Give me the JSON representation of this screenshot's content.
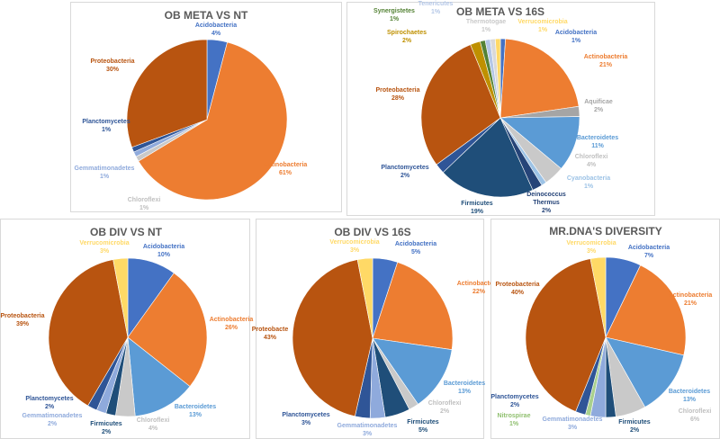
{
  "colors": {
    "Acidobacteria": "#4472C4",
    "Actinobacteria": "#ED7D31",
    "Aquificae": "#A5A5A5",
    "Bacteroidetes": "#5B9BD5",
    "Chloroflexi": "#C9C9C9",
    "Cyanobacteria": "#9DC3E6",
    "Deinococcus Thermus": "#264478",
    "Firmicutes": "#1F4E79",
    "Gemmatimonadetes": "#8FAADC",
    "Nitrospirae": "#A9D18E",
    "Planctomycetes": "#2F5597",
    "Proteobacteria": "#B85410",
    "Spirochaetes": "#BF9000",
    "Synergistetes": "#548235",
    "Tenericutes": "#B4C7E7",
    "Thermotogae": "#D9D9D9",
    "Verrucomicrobia": "#FFD966"
  },
  "chart_data": [
    {
      "type": "pie",
      "title": "OB META VS NT",
      "slices": [
        {
          "name": "Acidobacteria",
          "label": "Acidobacteria",
          "value": 4,
          "pct": "4%"
        },
        {
          "name": "Actinobacteria",
          "label": "Actinobacteria",
          "value": 61,
          "pct": "61%"
        },
        {
          "name": "Chloroflexi",
          "label": "Chloroflexi",
          "value": 1,
          "pct": "1%"
        },
        {
          "name": "Gemmatimonadetes",
          "label": "Gemmatimonadetes",
          "value": 1,
          "pct": "1%"
        },
        {
          "name": "Planctomycetes",
          "label": "Planctomycetes",
          "value": 1,
          "pct": "1%"
        },
        {
          "name": "Proteobacteria",
          "label": "Proteobacteria",
          "value": 30,
          "pct": "30%"
        }
      ]
    },
    {
      "type": "pie",
      "title": "OB META VS 16S",
      "slices": [
        {
          "name": "Acidobacteria",
          "label": "Acidobacteria",
          "value": 1,
          "pct": "1%"
        },
        {
          "name": "Actinobacteria",
          "label": "Actinobacteria",
          "value": 21,
          "pct": "21%"
        },
        {
          "name": "Aquificae",
          "label": "Aquificae",
          "value": 2,
          "pct": "2%"
        },
        {
          "name": "Bacteroidetes",
          "label": "Bacteroidetes",
          "value": 11,
          "pct": "11%"
        },
        {
          "name": "Chloroflexi",
          "label": "Chloroflexi",
          "value": 4,
          "pct": "4%"
        },
        {
          "name": "Cyanobacteria",
          "label": "Cyanobacteria",
          "value": 1,
          "pct": "1%"
        },
        {
          "name": "Deinococcus Thermus",
          "label": "Deinococcus Thermus",
          "value": 2,
          "pct": "2%"
        },
        {
          "name": "Firmicutes",
          "label": "Firmicutes",
          "value": 19,
          "pct": "19%"
        },
        {
          "name": "Planctomycetes",
          "label": "Planctomycetes",
          "value": 2,
          "pct": "2%"
        },
        {
          "name": "Proteobacteria",
          "label": "Proteobacteria",
          "value": 28,
          "pct": "28%"
        },
        {
          "name": "Spirochaetes",
          "label": "Spirochaetes",
          "value": 2,
          "pct": "2%"
        },
        {
          "name": "Synergistetes",
          "label": "Synergistetes",
          "value": 1,
          "pct": "1%"
        },
        {
          "name": "Tenericutes",
          "label": "Tenericutes",
          "value": 1,
          "pct": "1%"
        },
        {
          "name": "Thermotogae",
          "label": "Thermotogae",
          "value": 1,
          "pct": "1%"
        },
        {
          "name": "Verrucomicrobia",
          "label": "Verrucomicrobia",
          "value": 1,
          "pct": "1%"
        }
      ]
    },
    {
      "type": "pie",
      "title": "OB DIV VS NT",
      "slices": [
        {
          "name": "Acidobacteria",
          "label": "Acidobacteria",
          "value": 10,
          "pct": "10%"
        },
        {
          "name": "Actinobacteria",
          "label": "Actinobacteria",
          "value": 26,
          "pct": "26%"
        },
        {
          "name": "Bacteroidetes",
          "label": "Bacteroidetes",
          "value": 13,
          "pct": "13%"
        },
        {
          "name": "Chloroflexi",
          "label": "Chloroflexi",
          "value": 4,
          "pct": "4%"
        },
        {
          "name": "Firmicutes",
          "label": "Firmicutes",
          "value": 2,
          "pct": "2%"
        },
        {
          "name": "Gemmatimonadetes",
          "label": "Gemmatimonadetes",
          "value": 2,
          "pct": "2%"
        },
        {
          "name": "Planctomycetes",
          "label": "Planctomycetes",
          "value": 2,
          "pct": "2%"
        },
        {
          "name": "Proteobacteria",
          "label": "Proteobacteria",
          "value": 39,
          "pct": "39%"
        },
        {
          "name": "Verrucomicrobia",
          "label": "Verrucomicrobia",
          "value": 3,
          "pct": "3%"
        }
      ]
    },
    {
      "type": "pie",
      "title": "OB DIV VS 16S",
      "slices": [
        {
          "name": "Acidobacteria",
          "label": "Acidobacteria",
          "value": 5,
          "pct": "5%"
        },
        {
          "name": "Actinobacteria",
          "label": "Actinobacteria",
          "value": 22,
          "pct": "22%"
        },
        {
          "name": "Bacteroidetes",
          "label": "Bacteroidetes",
          "value": 13,
          "pct": "13%"
        },
        {
          "name": "Chloroflexi",
          "label": "Chloroflexi",
          "value": 2,
          "pct": "2%"
        },
        {
          "name": "Firmicutes",
          "label": "Firmicutes",
          "value": 5,
          "pct": "5%"
        },
        {
          "name": "Gemmatimonadetes",
          "label": "Gemmatimonadetes",
          "value": 3,
          "pct": "3%"
        },
        {
          "name": "Planctomycetes",
          "label": "Planctomycetes",
          "value": 3,
          "pct": "3%"
        },
        {
          "name": "Proteobacteria",
          "label": "Proteobacte",
          "value": 43,
          "pct": "43%"
        },
        {
          "name": "Verrucomicrobia",
          "label": "Verrucomicrobia",
          "value": 3,
          "pct": "3%"
        }
      ]
    },
    {
      "type": "pie",
      "title": "MR.DNA'S DIVERSITY",
      "slices": [
        {
          "name": "Acidobacteria",
          "label": "Acidobacteria",
          "value": 7,
          "pct": "7%"
        },
        {
          "name": "Actinobacteria",
          "label": "Actinobacteria",
          "value": 21,
          "pct": "21%"
        },
        {
          "name": "Bacteroidetes",
          "label": "Bacteroidetes",
          "value": 13,
          "pct": "13%"
        },
        {
          "name": "Chloroflexi",
          "label": "Chloroflexi",
          "value": 6,
          "pct": "6%"
        },
        {
          "name": "Firmicutes",
          "label": "Firmicutes",
          "value": 2,
          "pct": "2%"
        },
        {
          "name": "Gemmatimonadetes",
          "label": "Gemmatimonadetes",
          "value": 3,
          "pct": "3%"
        },
        {
          "name": "Nitrospirae",
          "label": "Nitrospirae",
          "value": 1,
          "pct": "1%"
        },
        {
          "name": "Planctomycetes",
          "label": "Planctomycetes",
          "value": 2,
          "pct": "2%"
        },
        {
          "name": "Proteobacteria",
          "label": "Proteobacteria",
          "value": 40,
          "pct": "40%"
        },
        {
          "name": "Verrucomicrobia",
          "label": "Verrucomicrobia",
          "value": 3,
          "pct": "3%"
        }
      ]
    }
  ]
}
